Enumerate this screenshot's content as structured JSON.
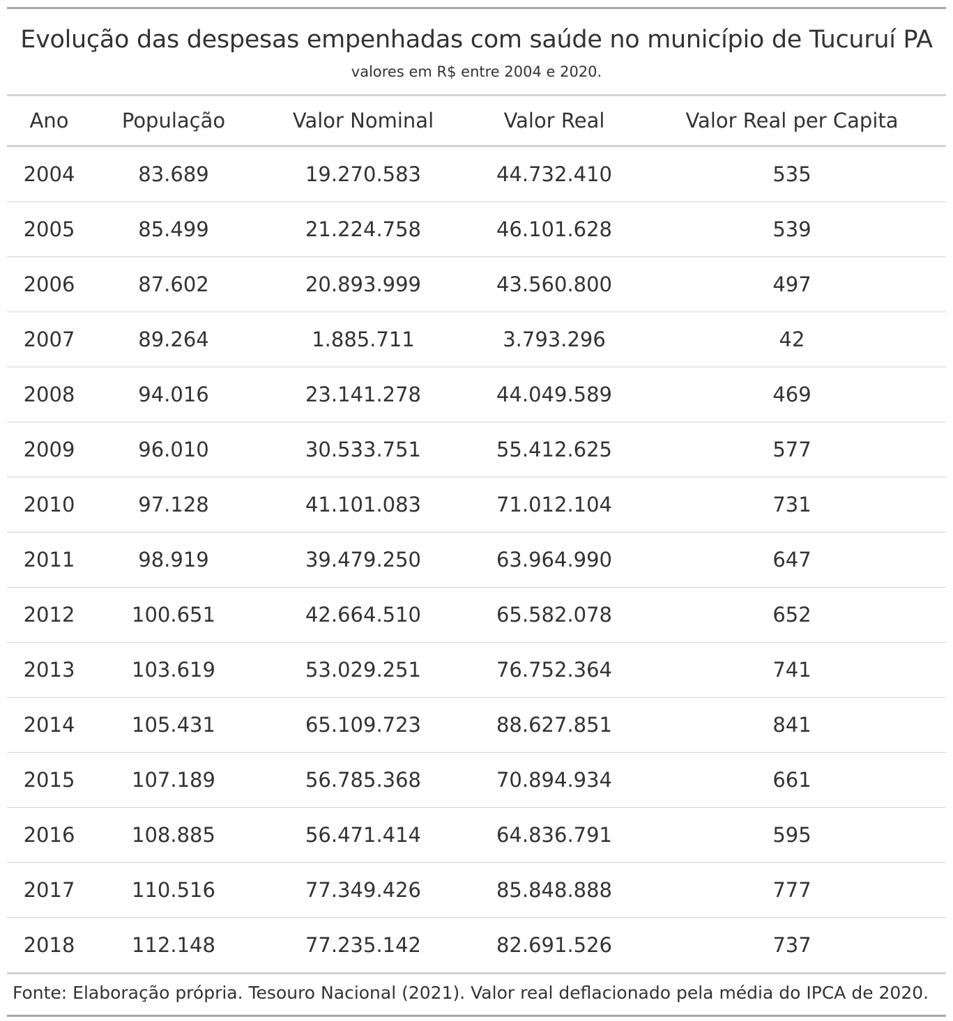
{
  "table": {
    "title": "Evolução das despesas empenhadas com saúde no município de Tucuruí PA",
    "subtitle": "valores em R$ entre 2004 e 2020.",
    "columns": [
      "Ano",
      "População",
      "Valor Nominal",
      "Valor Real",
      "Valor Real per Capita"
    ],
    "rows": [
      [
        "2004",
        "83.689",
        "19.270.583",
        "44.732.410",
        "535"
      ],
      [
        "2005",
        "85.499",
        "21.224.758",
        "46.101.628",
        "539"
      ],
      [
        "2006",
        "87.602",
        "20.893.999",
        "43.560.800",
        "497"
      ],
      [
        "2007",
        "89.264",
        "1.885.711",
        "3.793.296",
        "42"
      ],
      [
        "2008",
        "94.016",
        "23.141.278",
        "44.049.589",
        "469"
      ],
      [
        "2009",
        "96.010",
        "30.533.751",
        "55.412.625",
        "577"
      ],
      [
        "2010",
        "97.128",
        "41.101.083",
        "71.012.104",
        "731"
      ],
      [
        "2011",
        "98.919",
        "39.479.250",
        "63.964.990",
        "647"
      ],
      [
        "2012",
        "100.651",
        "42.664.510",
        "65.582.078",
        "652"
      ],
      [
        "2013",
        "103.619",
        "53.029.251",
        "76.752.364",
        "741"
      ],
      [
        "2014",
        "105.431",
        "65.109.723",
        "88.627.851",
        "841"
      ],
      [
        "2015",
        "107.189",
        "56.785.368",
        "70.894.934",
        "661"
      ],
      [
        "2016",
        "108.885",
        "56.471.414",
        "64.836.791",
        "595"
      ],
      [
        "2017",
        "110.516",
        "77.349.426",
        "85.848.888",
        "777"
      ],
      [
        "2018",
        "112.148",
        "77.235.142",
        "82.691.526",
        "737"
      ]
    ],
    "footnote": "Fonte: Elaboração própria. Tesouro Nacional (2021). Valor real deflacionado pela média do IPCA de 2020."
  }
}
